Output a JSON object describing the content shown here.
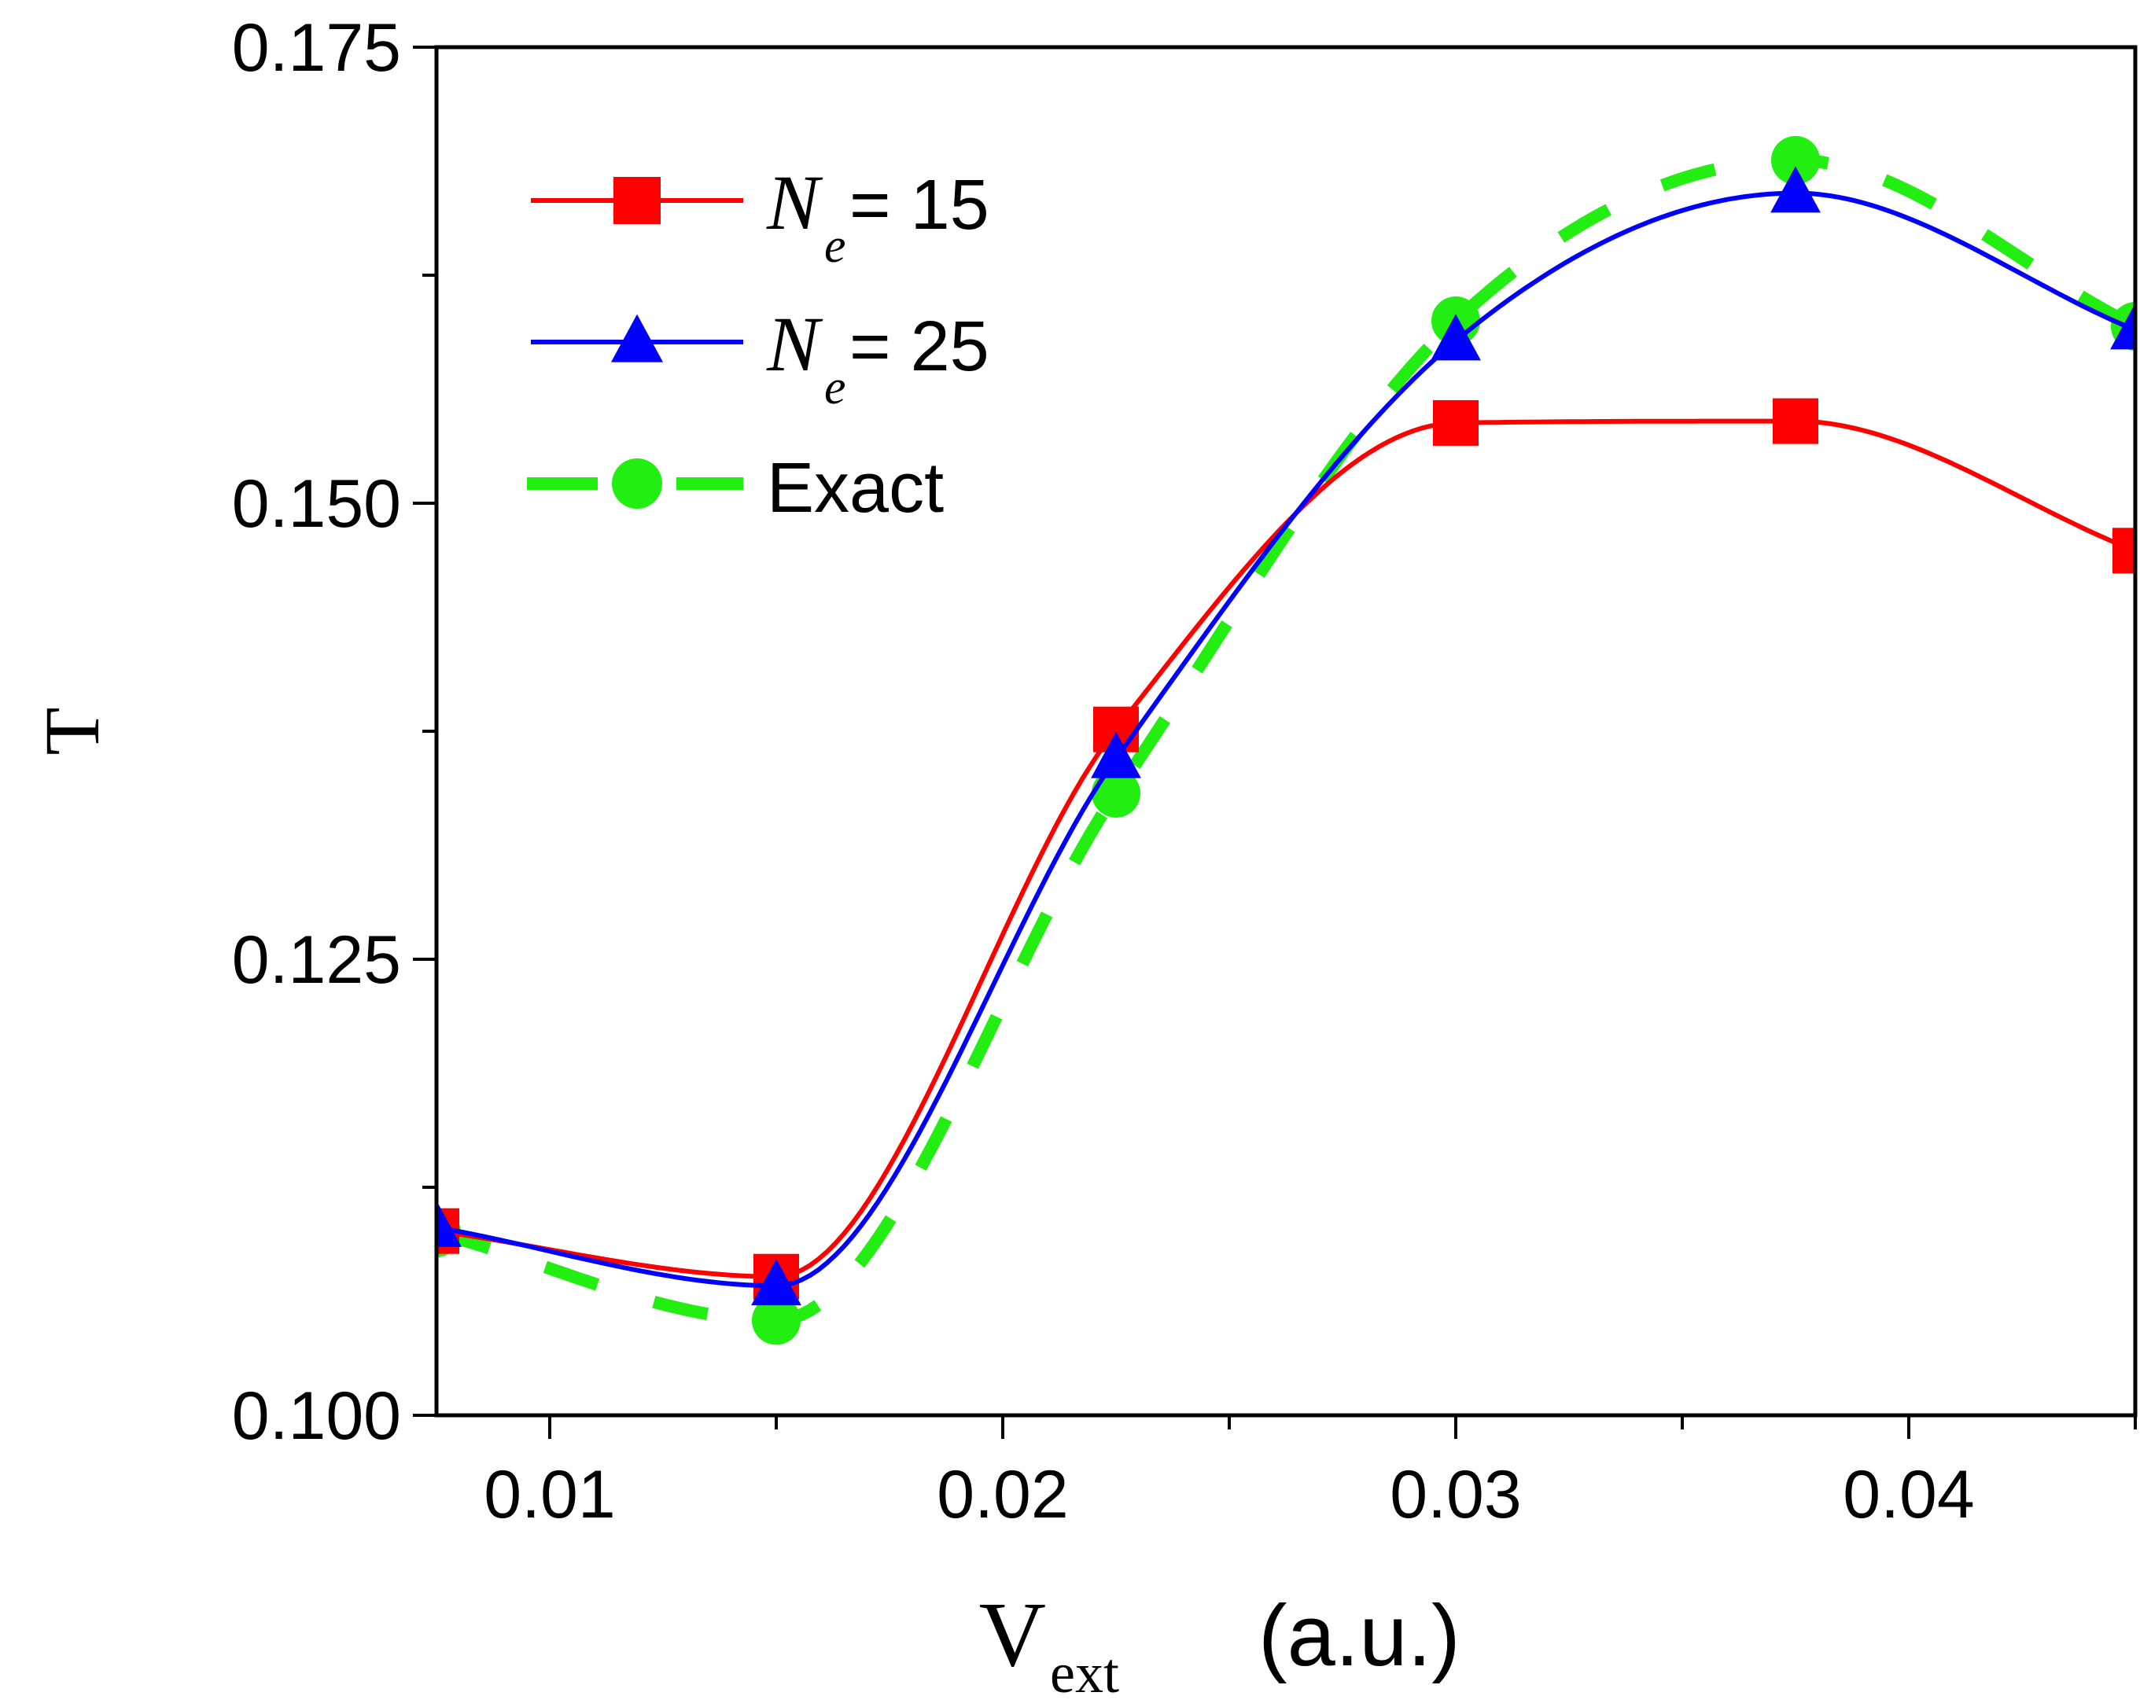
{
  "chart_data": {
    "type": "line",
    "title": "",
    "xlabel_main": "V",
    "xlabel_sub": "ext",
    "xlabel_unit": "(a.u.)",
    "ylabel": "T",
    "xlim": [
      0.0075,
      0.045
    ],
    "ylim": [
      0.1,
      0.175
    ],
    "x_ticks": [
      0.01,
      0.02,
      0.03,
      0.04
    ],
    "x_tick_labels": [
      "0.01",
      "0.02",
      "0.03",
      "0.04"
    ],
    "y_ticks": [
      0.1,
      0.125,
      0.15,
      0.175
    ],
    "y_tick_labels": [
      "0.100",
      "0.125",
      "0.150",
      "0.175"
    ],
    "legend_position": "top-left",
    "x": [
      0.0075,
      0.015,
      0.0225,
      0.03,
      0.0375,
      0.045
    ],
    "series": [
      {
        "name_main": "N",
        "name_sub": "e",
        "name_rest": " = 15",
        "color": "#ff0000",
        "marker": "square",
        "style": "solid",
        "values": [
          0.1101,
          0.1076,
          0.1376,
          0.1544,
          0.1545,
          0.1474
        ]
      },
      {
        "name_main": "N",
        "name_sub": "e",
        "name_rest": " = 25",
        "color": "#0000ff",
        "marker": "triangle",
        "style": "solid",
        "values": [
          0.1103,
          0.1071,
          0.136,
          0.1589,
          0.167,
          0.1595
        ]
      },
      {
        "name_main": "Exact",
        "name_sub": "",
        "name_rest": "",
        "color": "#22ee11",
        "marker": "circle",
        "style": "dashed",
        "values": [
          0.11,
          0.1052,
          0.1341,
          0.16,
          0.1688,
          0.1597
        ]
      }
    ]
  }
}
